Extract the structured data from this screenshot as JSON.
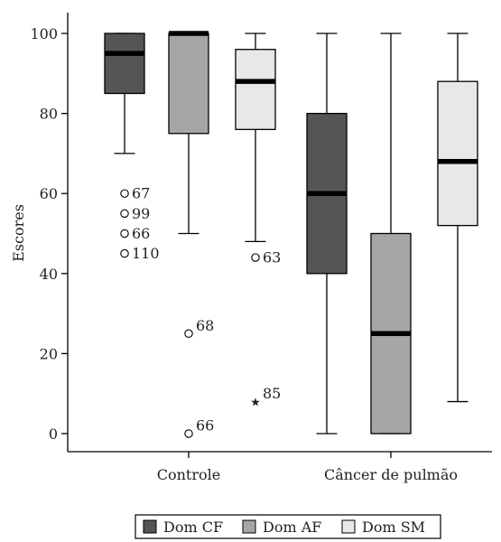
{
  "chart_data": {
    "type": "boxplot",
    "ylabel": "Escores",
    "ylim": [
      0,
      100
    ],
    "yticks": [
      0,
      20,
      40,
      60,
      80,
      100
    ],
    "categories": [
      "Controle",
      "Câncer de pulmão"
    ],
    "legend_position": "bottom",
    "series": [
      {
        "name": "Dom CF",
        "color": "#555555",
        "boxes": [
          {
            "min": 70,
            "q1": 85,
            "median": 95,
            "q3": 100,
            "max": 100
          },
          {
            "min": 0,
            "q1": 40,
            "median": 60,
            "q3": 80,
            "max": 100
          }
        ]
      },
      {
        "name": "Dom AF",
        "color": "#a6a6a6",
        "boxes": [
          {
            "min": 50,
            "q1": 75,
            "median": 100,
            "q3": 100,
            "max": 100
          },
          {
            "min": 0,
            "q1": 0,
            "median": 25,
            "q3": 50,
            "max": 100
          }
        ]
      },
      {
        "name": "Dom SM",
        "color": "#e8e8e8",
        "boxes": [
          {
            "min": 48,
            "q1": 76,
            "median": 88,
            "q3": 96,
            "max": 100
          },
          {
            "min": 8,
            "q1": 52,
            "median": 68,
            "q3": 88,
            "max": 100
          }
        ]
      }
    ],
    "outliers": [
      {
        "category": "Controle",
        "series": "Dom CF",
        "value": 60,
        "label": "67",
        "marker": "circle"
      },
      {
        "category": "Controle",
        "series": "Dom CF",
        "value": 55,
        "label": "99",
        "marker": "circle"
      },
      {
        "category": "Controle",
        "series": "Dom CF",
        "value": 50,
        "label": "66",
        "marker": "circle"
      },
      {
        "category": "Controle",
        "series": "Dom CF",
        "value": 45,
        "label": "110",
        "marker": "circle"
      },
      {
        "category": "Controle",
        "series": "Dom AF",
        "value": 25,
        "label": "68",
        "marker": "circle"
      },
      {
        "category": "Controle",
        "series": "Dom AF",
        "value": 0,
        "label": "66",
        "marker": "circle"
      },
      {
        "category": "Controle",
        "series": "Dom SM",
        "value": 44,
        "label": "63",
        "marker": "circle"
      },
      {
        "category": "Controle",
        "series": "Dom SM",
        "value": 8,
        "label": "85",
        "marker": "star"
      }
    ]
  }
}
